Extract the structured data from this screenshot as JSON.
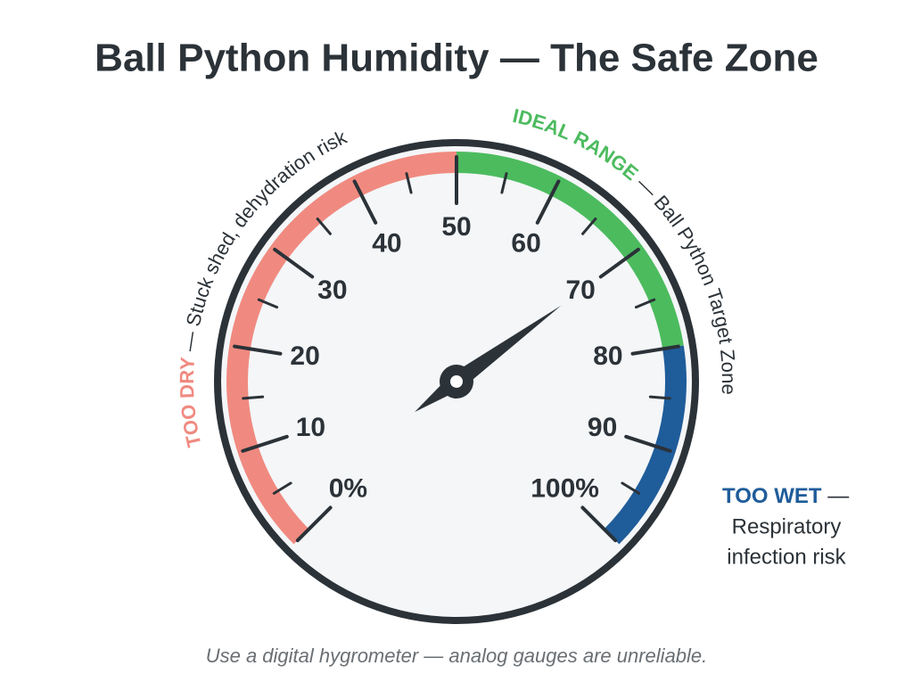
{
  "chart_data": {
    "type": "gauge",
    "title": "Ball Python Humidity — The Safe Zone",
    "footer": "Use a digital hygrometer — analog gauges are unreliable.",
    "lim": [
      0,
      100
    ],
    "value": 70,
    "ticks": [
      {
        "value": 0,
        "label": "0%"
      },
      10,
      20,
      30,
      40,
      50,
      60,
      70,
      80,
      90,
      {
        "value": 100,
        "label": "100%"
      }
    ],
    "minor_ticks": [
      5,
      15,
      25,
      35,
      45,
      55,
      65,
      75,
      85,
      95
    ],
    "zones": [
      {
        "label": "TOO DRY",
        "note": [
          "— Stuck shed, dehydration risk"
        ],
        "from": 0,
        "to": 50,
        "color": "#f08a80"
      },
      {
        "label": "IDEAL RANGE",
        "note": [
          "— Ball Python Target Zone"
        ],
        "from": 50,
        "to": 80,
        "color": "#4cbb5e"
      },
      {
        "label": "TOO WET",
        "note": [
          "—",
          "Respiratory",
          "infection risk"
        ],
        "from": 80,
        "to": 100,
        "color": "#1f5c9a"
      }
    ]
  }
}
